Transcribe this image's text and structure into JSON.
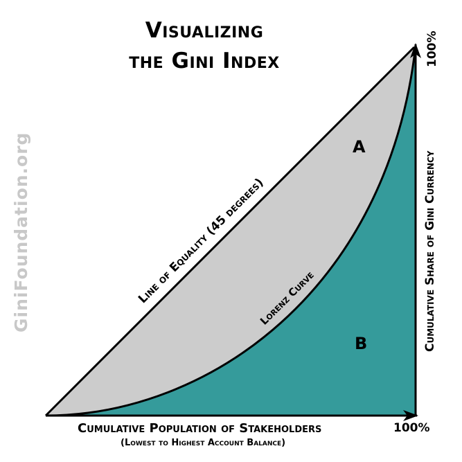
{
  "title_line1": "Visualizing",
  "title_line2": "the Gini Index",
  "watermark": "GiniFoundation.org",
  "x_axis": {
    "label": "Cumulative Population of Stakeholders",
    "sublabel": "(Lowest to Highest Account Balance)",
    "end_label": "100%"
  },
  "y_axis": {
    "label": "Cumulative Share of Gini Currency",
    "end_label": "100%"
  },
  "line_of_equality_label": "Line of Equality (45 degrees)",
  "lorenz_curve_label": "Lorenz Curve",
  "area_a_label": "A",
  "area_b_label": "B",
  "colors": {
    "area_a": "#cccccc",
    "area_b": "#359b9b",
    "lines": "#000000",
    "watermark": "#c8c8c8"
  }
}
